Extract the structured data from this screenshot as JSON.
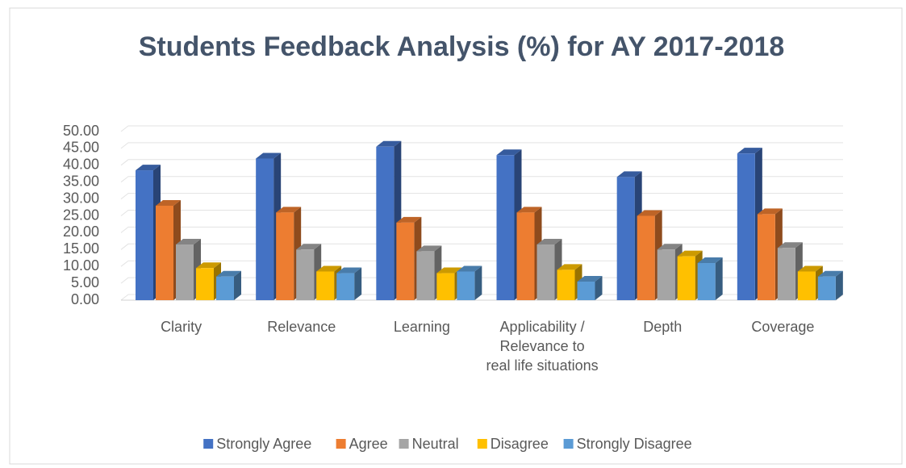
{
  "chart_data": {
    "type": "bar3d",
    "title": "Students Feedback Analysis (%) for AY 2017-2018",
    "categories": [
      "Clarity",
      "Relevance",
      "Learning",
      "Applicability / Relevance to real life situations",
      "Depth",
      "Coverage"
    ],
    "series": [
      {
        "name": "Strongly Agree",
        "color": "#4472c4",
        "values": [
          38.5,
          42,
          45.5,
          43,
          36.5,
          43.5
        ]
      },
      {
        "name": "Agree",
        "color": "#ed7d31",
        "values": [
          28,
          26,
          23,
          26,
          25,
          25.5
        ]
      },
      {
        "name": "Neutral",
        "color": "#a5a5a5",
        "values": [
          16.5,
          15,
          14.5,
          16.5,
          15,
          15.5
        ]
      },
      {
        "name": "Disagree",
        "color": "#ffc000",
        "values": [
          9.5,
          8.5,
          8,
          9,
          13,
          8.5
        ]
      },
      {
        "name": "Strongly Disagree",
        "color": "#5b9bd5",
        "values": [
          7,
          8,
          8.5,
          5.5,
          11,
          7
        ]
      }
    ],
    "ylim": [
      0,
      50
    ],
    "yticks": [
      {
        "value": 0,
        "label": "0.00"
      },
      {
        "value": 5,
        "label": "5.00"
      },
      {
        "value": 10,
        "label": "10.00"
      },
      {
        "value": 15,
        "label": "15.00"
      },
      {
        "value": 20,
        "label": "20.00"
      },
      {
        "value": 25,
        "label": "25.00"
      },
      {
        "value": 30,
        "label": "30.00"
      },
      {
        "value": 35,
        "label": "35.00"
      },
      {
        "value": 40,
        "label": "40.00"
      },
      {
        "value": 45,
        "label": "45.00"
      },
      {
        "value": 50,
        "label": "50.00"
      }
    ],
    "grid": true,
    "legend": "bottom"
  }
}
